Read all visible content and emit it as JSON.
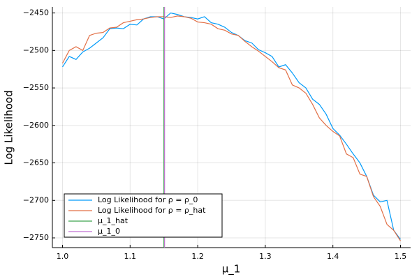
{
  "chart_data": {
    "type": "line",
    "xlabel": "μ_1",
    "ylabel": "Log Likelihood",
    "x": [
      1.0,
      1.01,
      1.02,
      1.03,
      1.04,
      1.05,
      1.06,
      1.07,
      1.08,
      1.09,
      1.1,
      1.11,
      1.12,
      1.13,
      1.14,
      1.15,
      1.16,
      1.17,
      1.18,
      1.19,
      1.2,
      1.21,
      1.22,
      1.23,
      1.24,
      1.25,
      1.26,
      1.27,
      1.28,
      1.29,
      1.3,
      1.31,
      1.32,
      1.33,
      1.34,
      1.35,
      1.36,
      1.37,
      1.38,
      1.39,
      1.4,
      1.41,
      1.42,
      1.43,
      1.44,
      1.45,
      1.46,
      1.47,
      1.48,
      1.49,
      1.5
    ],
    "series": [
      {
        "name": "Log Likelihood for ρ = ρ_0",
        "color": "#009af9",
        "values": [
          -2522,
          -2508,
          -2512,
          -2502,
          -2497,
          -2490,
          -2483,
          -2471,
          -2470,
          -2471,
          -2465,
          -2466,
          -2458,
          -2455,
          -2455,
          -2458,
          -2450,
          -2452,
          -2455,
          -2456,
          -2458,
          -2455,
          -2463,
          -2465,
          -2469,
          -2476,
          -2480,
          -2487,
          -2490,
          -2499,
          -2503,
          -2508,
          -2522,
          -2519,
          -2530,
          -2543,
          -2550,
          -2565,
          -2572,
          -2585,
          -2604,
          -2613,
          -2625,
          -2638,
          -2650,
          -2668,
          -2693,
          -2702,
          -2700,
          -2740,
          -2752
        ]
      },
      {
        "name": "Log Likelihood for ρ = ρ_hat",
        "color": "#e26f46",
        "values": [
          -2517,
          -2500,
          -2495,
          -2500,
          -2480,
          -2477,
          -2476,
          -2470,
          -2469,
          -2463,
          -2461,
          -2459,
          -2458,
          -2456,
          -2455,
          -2455,
          -2456,
          -2454,
          -2455,
          -2457,
          -2462,
          -2463,
          -2465,
          -2471,
          -2473,
          -2478,
          -2480,
          -2488,
          -2495,
          -2501,
          -2508,
          -2515,
          -2523,
          -2526,
          -2546,
          -2550,
          -2557,
          -2572,
          -2590,
          -2600,
          -2608,
          -2614,
          -2638,
          -2643,
          -2665,
          -2668,
          -2695,
          -2708,
          -2732,
          -2740,
          -2754
        ]
      }
    ],
    "vlines": [
      {
        "name": "μ_1_hat",
        "color": "#3da44d",
        "value": 1.15
      },
      {
        "name": "μ_1_0",
        "color": "#c271d2",
        "value": 1.151
      }
    ],
    "xlim": [
      0.985,
      1.515
    ],
    "xticks": [
      {
        "value": 1,
        "label": "1.0"
      },
      1.1,
      1.2,
      1.3,
      1.4,
      1.5
    ],
    "ylim": [
      -2763,
      -2442
    ],
    "yticks": [
      {
        "value": -2750,
        "label": "−2750"
      },
      {
        "value": -2700,
        "label": "−2700"
      },
      {
        "value": -2650,
        "label": "−2650"
      },
      {
        "value": -2600,
        "label": "−2600"
      },
      {
        "value": -2550,
        "label": "−2550"
      },
      {
        "value": -2500,
        "label": "−2500"
      },
      {
        "value": -2450,
        "label": "−2450"
      }
    ],
    "grid": true,
    "legend": "bottom-left"
  }
}
